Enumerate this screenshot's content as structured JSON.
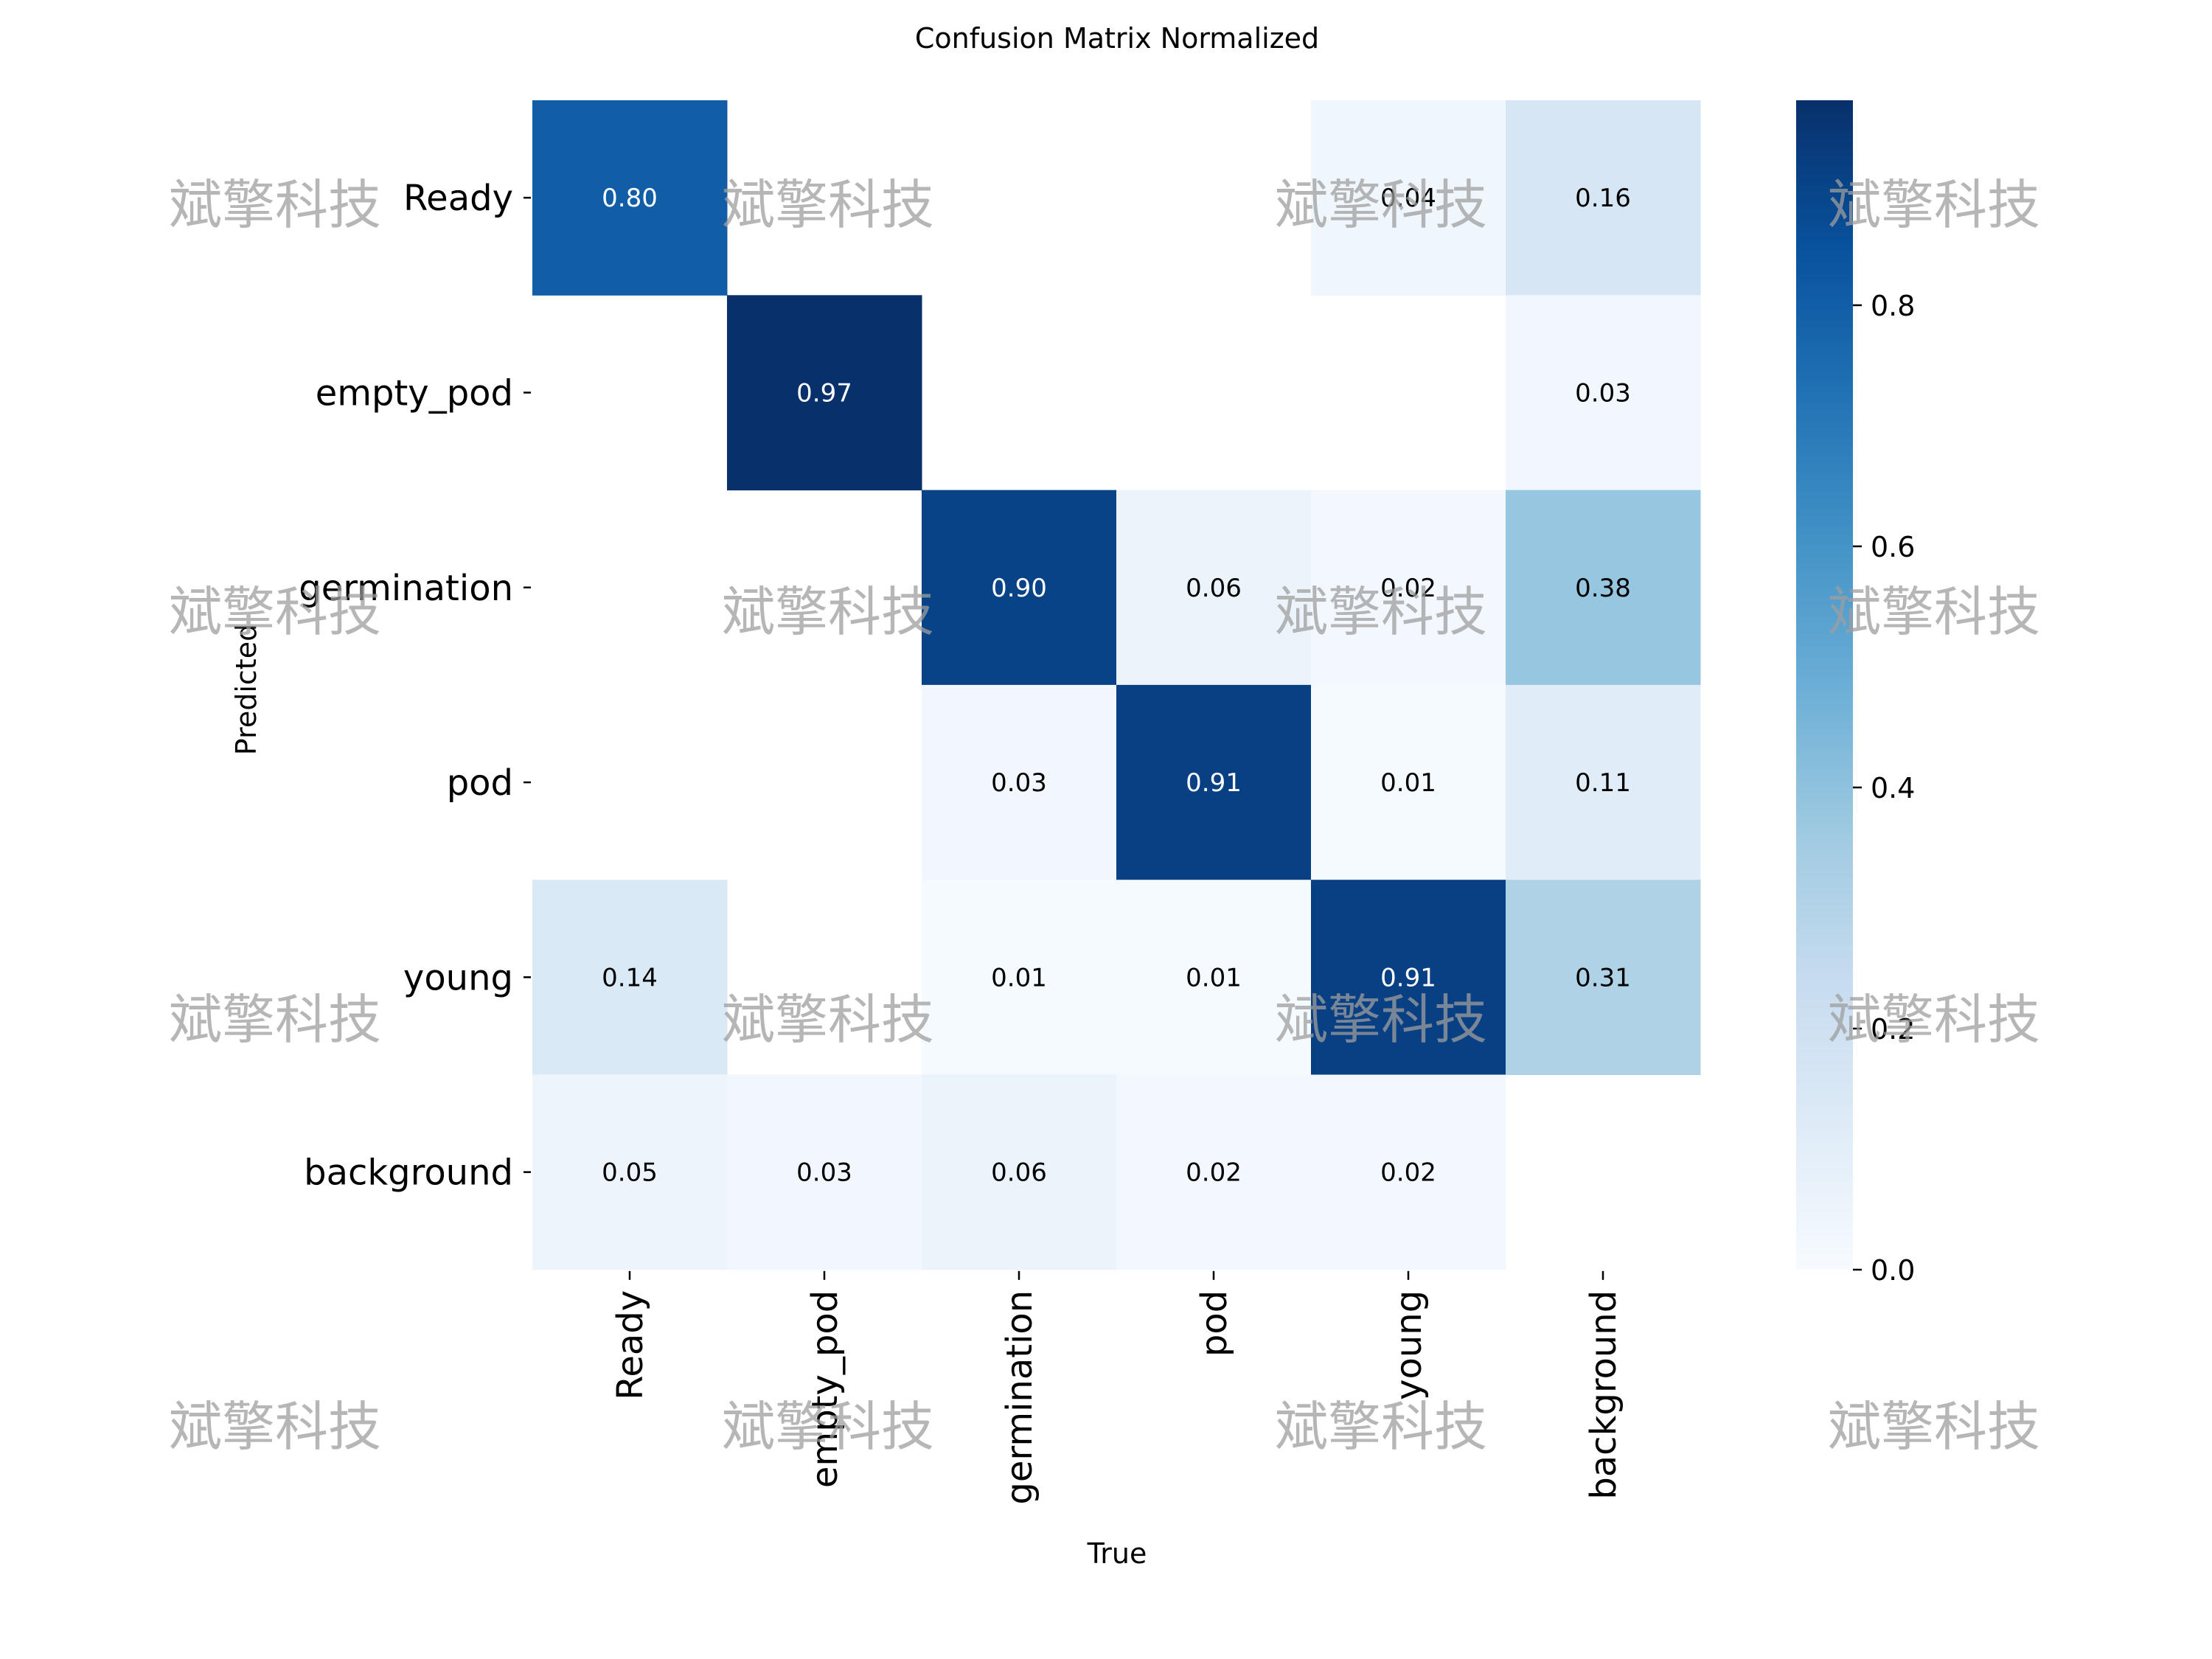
{
  "chart_data": {
    "type": "heatmap",
    "title": "Confusion Matrix Normalized",
    "xlabel": "True",
    "ylabel": "Predicted",
    "x_categories": [
      "Ready",
      "empty_pod",
      "germination",
      "pod",
      "young",
      "background"
    ],
    "y_categories": [
      "Ready",
      "empty_pod",
      "germination",
      "pod",
      "young",
      "background"
    ],
    "values": [
      [
        0.8,
        null,
        null,
        null,
        0.04,
        0.16
      ],
      [
        null,
        0.97,
        null,
        null,
        null,
        0.03
      ],
      [
        null,
        null,
        0.9,
        0.06,
        0.02,
        0.38
      ],
      [
        null,
        null,
        0.03,
        0.91,
        0.01,
        0.11
      ],
      [
        0.14,
        null,
        0.01,
        0.01,
        0.91,
        0.31
      ],
      [
        0.05,
        0.03,
        0.06,
        0.02,
        0.02,
        null
      ]
    ],
    "colorscale": "Blues",
    "colorbar": {
      "range": [
        0.0,
        0.97
      ],
      "ticks": [
        0.0,
        0.2,
        0.4,
        0.6,
        0.8
      ],
      "tick_labels": [
        "0.0",
        "0.2",
        "0.4",
        "0.6",
        "0.8"
      ]
    }
  },
  "watermark": {
    "text": "斌擎科技"
  },
  "colors": {
    "blues_low": "#f7fbff",
    "blues_high": "#08306b",
    "label_dark": "#000000",
    "label_light": "#ffffff",
    "watermark": "#9e9e9e"
  }
}
